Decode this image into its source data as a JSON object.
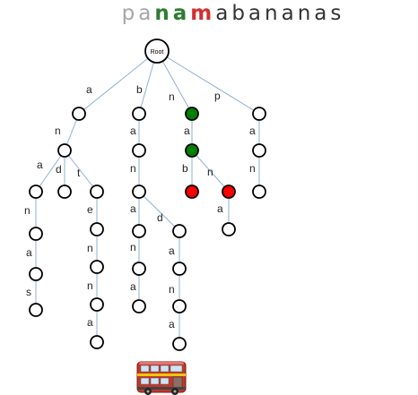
{
  "title": {
    "letters": [
      {
        "ch": "p",
        "color": "#a6a6a6",
        "bold": false
      },
      {
        "ch": "a",
        "color": "#a6a6a6",
        "bold": false
      },
      {
        "ch": "n",
        "color": "#2e7d32",
        "bold": true
      },
      {
        "ch": "a",
        "color": "#2e7d32",
        "bold": true
      },
      {
        "ch": "m",
        "color": "#d32f2f",
        "bold": true
      },
      {
        "ch": "a",
        "color": "#333333",
        "bold": false
      },
      {
        "ch": "b",
        "color": "#333333",
        "bold": false
      },
      {
        "ch": "a",
        "color": "#333333",
        "bold": false
      },
      {
        "ch": "n",
        "color": "#333333",
        "bold": false
      },
      {
        "ch": "a",
        "color": "#333333",
        "bold": false
      },
      {
        "ch": "n",
        "color": "#333333",
        "bold": false
      },
      {
        "ch": "a",
        "color": "#333333",
        "bold": false
      },
      {
        "ch": "s",
        "color": "#333333",
        "bold": false
      }
    ]
  },
  "colors": {
    "edge": "#8fb0d6",
    "node_default": "#ffffff",
    "node_match": "#008000",
    "node_mismatch": "#ff0000"
  },
  "root_label": "Root",
  "trie": {
    "nodes": [
      {
        "id": "root",
        "state": "default"
      },
      {
        "id": "a",
        "state": "default"
      },
      {
        "id": "an",
        "state": "default"
      },
      {
        "id": "ana",
        "state": "default"
      },
      {
        "id": "anan",
        "state": "default"
      },
      {
        "id": "anana",
        "state": "default"
      },
      {
        "id": "ananas",
        "state": "default"
      },
      {
        "id": "and",
        "state": "default"
      },
      {
        "id": "ant",
        "state": "default"
      },
      {
        "id": "ante",
        "state": "default"
      },
      {
        "id": "anten",
        "state": "default"
      },
      {
        "id": "antenn",
        "state": "default"
      },
      {
        "id": "antenna",
        "state": "default"
      },
      {
        "id": "b",
        "state": "default"
      },
      {
        "id": "ba",
        "state": "default"
      },
      {
        "id": "ban",
        "state": "default"
      },
      {
        "id": "bana",
        "state": "default"
      },
      {
        "id": "banan",
        "state": "default"
      },
      {
        "id": "banana",
        "state": "default"
      },
      {
        "id": "band",
        "state": "default"
      },
      {
        "id": "banda",
        "state": "default"
      },
      {
        "id": "bandan",
        "state": "default"
      },
      {
        "id": "bandana",
        "state": "default"
      },
      {
        "id": "n",
        "state": "match"
      },
      {
        "id": "na",
        "state": "match"
      },
      {
        "id": "nab",
        "state": "mismatch"
      },
      {
        "id": "nan",
        "state": "mismatch"
      },
      {
        "id": "nana",
        "state": "default"
      },
      {
        "id": "p",
        "state": "default"
      },
      {
        "id": "pa",
        "state": "default"
      },
      {
        "id": "pan",
        "state": "default"
      }
    ],
    "edges": [
      {
        "from": "root",
        "to": "a",
        "label": "a"
      },
      {
        "from": "root",
        "to": "b",
        "label": "b"
      },
      {
        "from": "root",
        "to": "n",
        "label": "n"
      },
      {
        "from": "root",
        "to": "p",
        "label": "p"
      },
      {
        "from": "a",
        "to": "an",
        "label": "n"
      },
      {
        "from": "an",
        "to": "ana",
        "label": "a"
      },
      {
        "from": "an",
        "to": "and",
        "label": "d"
      },
      {
        "from": "an",
        "to": "ant",
        "label": "t"
      },
      {
        "from": "ana",
        "to": "anan",
        "label": "n"
      },
      {
        "from": "anan",
        "to": "anana",
        "label": "a"
      },
      {
        "from": "anana",
        "to": "ananas",
        "label": "s"
      },
      {
        "from": "ant",
        "to": "ante",
        "label": "e"
      },
      {
        "from": "ante",
        "to": "anten",
        "label": "n"
      },
      {
        "from": "anten",
        "to": "antenn",
        "label": "n"
      },
      {
        "from": "antenn",
        "to": "antenna",
        "label": "a"
      },
      {
        "from": "b",
        "to": "ba",
        "label": "a"
      },
      {
        "from": "ba",
        "to": "ban",
        "label": "n"
      },
      {
        "from": "ban",
        "to": "bana",
        "label": "a"
      },
      {
        "from": "ban",
        "to": "band",
        "label": "d"
      },
      {
        "from": "bana",
        "to": "banan",
        "label": "n"
      },
      {
        "from": "banan",
        "to": "banana",
        "label": "a"
      },
      {
        "from": "band",
        "to": "banda",
        "label": "a"
      },
      {
        "from": "banda",
        "to": "bandan",
        "label": "n"
      },
      {
        "from": "bandan",
        "to": "bandana",
        "label": "a"
      },
      {
        "from": "n",
        "to": "na",
        "label": "a"
      },
      {
        "from": "na",
        "to": "nab",
        "label": "b"
      },
      {
        "from": "na",
        "to": "nan",
        "label": "n"
      },
      {
        "from": "nan",
        "to": "nana",
        "label": "a"
      },
      {
        "from": "p",
        "to": "pa",
        "label": "a"
      },
      {
        "from": "pa",
        "to": "pan",
        "label": "n"
      }
    ]
  },
  "bus_icon": "double-decker-bus-icon"
}
